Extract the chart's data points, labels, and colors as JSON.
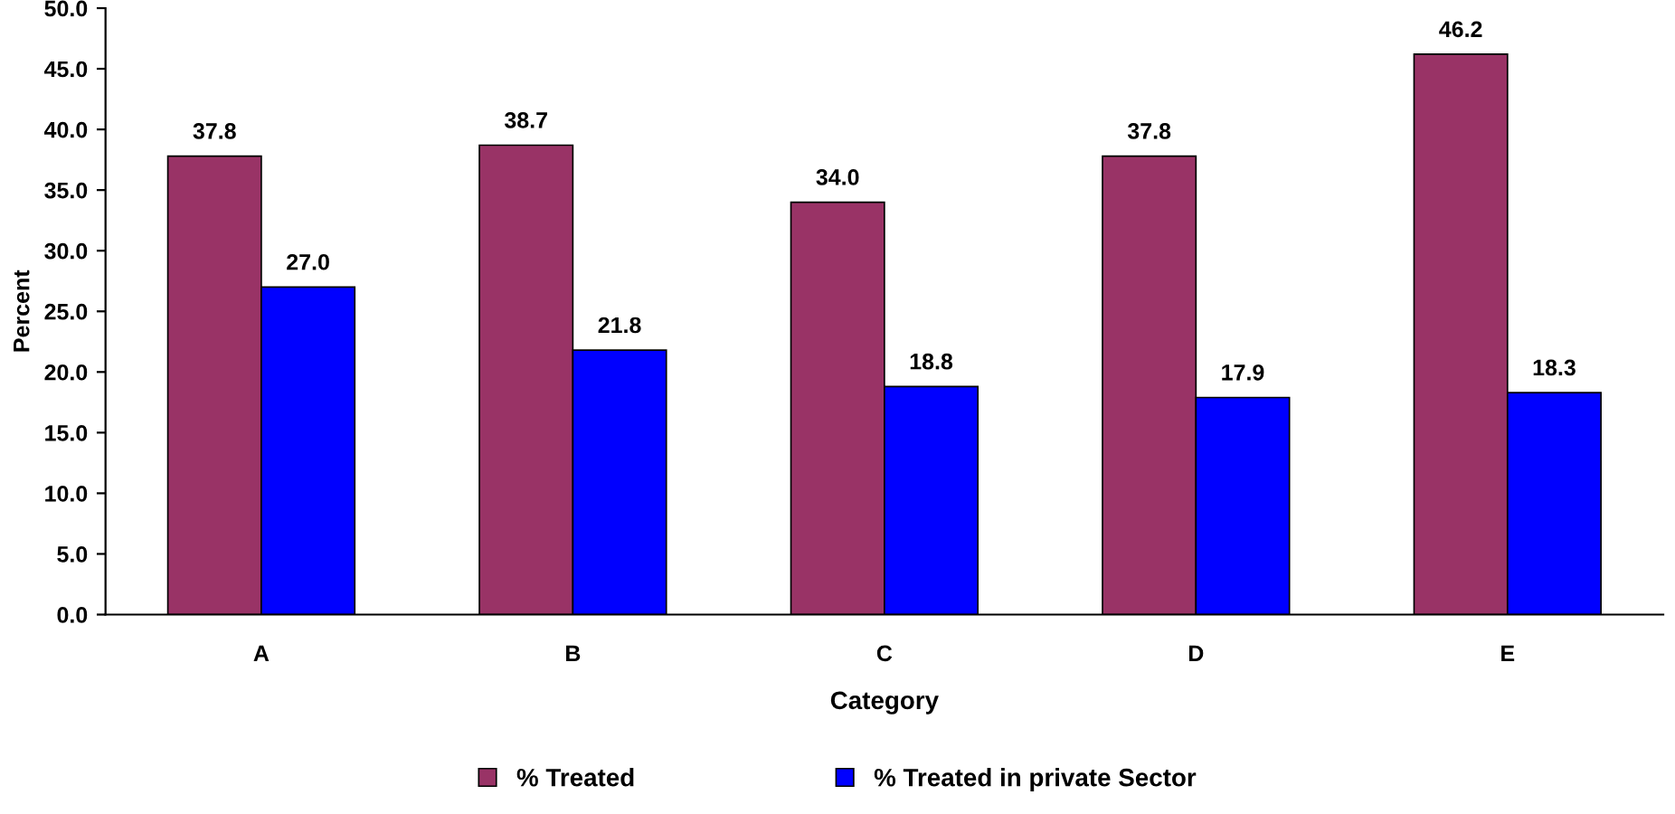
{
  "chart_data": {
    "type": "bar",
    "xlabel": "Category",
    "ylabel": "Percent",
    "categories": [
      "A",
      "B",
      "C",
      "D",
      "E"
    ],
    "series": [
      {
        "name": "% Treated",
        "color": "#993366",
        "values": [
          37.8,
          38.7,
          34.0,
          37.8,
          46.2
        ],
        "value_labels": [
          "37.8",
          "38.7",
          "34.0",
          "37.8",
          "46.2"
        ]
      },
      {
        "name": "% Treated in private Sector",
        "color": "#0000ff",
        "values": [
          27.0,
          21.8,
          18.8,
          17.9,
          18.3
        ],
        "value_labels": [
          "27.0",
          "21.8",
          "18.8",
          "17.9",
          "18.3"
        ]
      }
    ],
    "ylim": [
      0,
      50
    ],
    "yticks": [
      {
        "value": 0,
        "label": "0.0"
      },
      {
        "value": 5,
        "label": "5.0"
      },
      {
        "value": 10,
        "label": "10.0"
      },
      {
        "value": 15,
        "label": "15.0"
      },
      {
        "value": 20,
        "label": "20.0"
      },
      {
        "value": 25,
        "label": "25.0"
      },
      {
        "value": 30,
        "label": "30.0"
      },
      {
        "value": 35,
        "label": "35.0"
      },
      {
        "value": 40,
        "label": "40.0"
      },
      {
        "value": 45,
        "label": "45.0"
      },
      {
        "value": 50,
        "label": "50.0"
      }
    ],
    "grid": false,
    "legend": "bottom"
  }
}
